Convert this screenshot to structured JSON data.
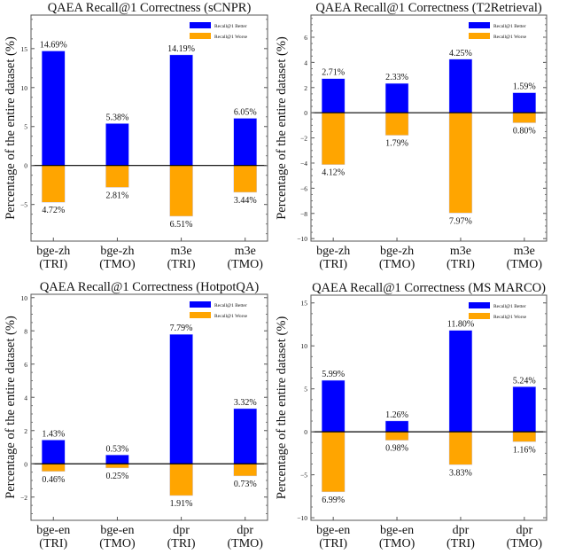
{
  "colors": {
    "better": "#0000ff",
    "worse": "#ffa500"
  },
  "chart_data": [
    {
      "type": "bar",
      "title": "QAEA Recall@1 Correctness (sCNPR)",
      "ylabel": "Percentage of the entire dataset (%)",
      "categories": [
        [
          "bge-zh",
          "(TRI)"
        ],
        [
          "bge-zh",
          "(TMO)"
        ],
        [
          "m3e",
          "(TRI)"
        ],
        [
          "m3e",
          "(TMO)"
        ]
      ],
      "series": [
        {
          "name": "Recall@1 Better",
          "values": [
            14.69,
            5.38,
            14.19,
            6.05
          ],
          "labels": [
            "14.69%",
            "5.38%",
            "14.19%",
            "6.05%"
          ]
        },
        {
          "name": "Recall@1 Worse",
          "values": [
            -4.72,
            -2.81,
            -6.51,
            -3.44
          ],
          "labels": [
            "4.72%",
            "2.81%",
            "6.51%",
            "3.44%"
          ]
        }
      ],
      "yticks": [
        -5,
        0,
        5,
        10,
        15
      ],
      "ylim": [
        -9.7,
        19.3
      ],
      "legend": "top-right"
    },
    {
      "type": "bar",
      "title": "QAEA Recall@1 Correctness (T2Retrieval)",
      "ylabel": "Percentage of the entire dataset (%)",
      "categories": [
        [
          "bge-zh",
          "(TRI)"
        ],
        [
          "bge-zh",
          "(TMO)"
        ],
        [
          "m3e",
          "(TRI)"
        ],
        [
          "m3e",
          "(TMO)"
        ]
      ],
      "series": [
        {
          "name": "Recall@1 Better",
          "values": [
            2.71,
            2.33,
            4.25,
            1.59
          ],
          "labels": [
            "2.71%",
            "2.33%",
            "4.25%",
            "1.59%"
          ]
        },
        {
          "name": "Recall@1 Worse",
          "values": [
            -4.12,
            -1.79,
            -7.97,
            -0.8
          ],
          "labels": [
            "4.12%",
            "1.79%",
            "7.97%",
            "0.80%"
          ]
        }
      ],
      "yticks": [
        -10,
        -8,
        -6,
        -4,
        -2,
        0,
        2,
        4,
        6
      ],
      "ylim": [
        -10.2,
        7.76
      ],
      "legend": "top-right"
    },
    {
      "type": "bar",
      "title": "QAEA Recall@1 Correctness (HotpotQA)",
      "ylabel": "Percentage of the entire dataset (%)",
      "categories": [
        [
          "bge-en",
          "(TRI)"
        ],
        [
          "bge-en",
          "(TMO)"
        ],
        [
          "dpr",
          "(TRI)"
        ],
        [
          "dpr",
          "(TMO)"
        ]
      ],
      "series": [
        {
          "name": "Recall@1 Better",
          "values": [
            1.43,
            0.53,
            7.79,
            3.32
          ],
          "labels": [
            "1.43%",
            "0.53%",
            "7.79%",
            "3.32%"
          ]
        },
        {
          "name": "Recall@1 Worse",
          "values": [
            -0.46,
            -0.25,
            -1.91,
            -0.73
          ],
          "labels": [
            "0.46%",
            "0.25%",
            "1.91%",
            "0.73%"
          ]
        }
      ],
      "yticks": [
        -2,
        0,
        2,
        4,
        6,
        8,
        10
      ],
      "ylim": [
        -3.4,
        10.2
      ],
      "legend": "top-right"
    },
    {
      "type": "bar",
      "title": "QAEA Recall@1 Correctness (MS MARCO)",
      "ylabel": "Percentage of the entire dataset (%)",
      "categories": [
        [
          "bge-en",
          "(TRI)"
        ],
        [
          "bge-en",
          "(TMO)"
        ],
        [
          "dpr",
          "(TRI)"
        ],
        [
          "dpr",
          "(TMO)"
        ]
      ],
      "series": [
        {
          "name": "Recall@1 Better",
          "values": [
            5.99,
            1.26,
            11.8,
            5.24
          ],
          "labels": [
            "5.99%",
            "1.26%",
            "11.80%",
            "5.24%"
          ]
        },
        {
          "name": "Recall@1 Worse",
          "values": [
            -6.99,
            -0.98,
            -3.83,
            -1.16
          ],
          "labels": [
            "6.99%",
            "0.98%",
            "3.83%",
            "1.16%"
          ]
        }
      ],
      "yticks": [
        -10,
        -5,
        0,
        5,
        10,
        15
      ],
      "ylim": [
        -10.3,
        15.9
      ],
      "legend": "top-right"
    }
  ]
}
